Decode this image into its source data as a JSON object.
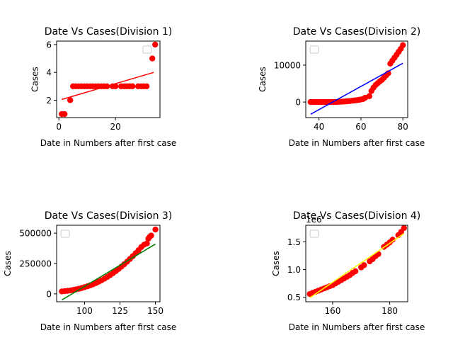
{
  "chart_data": [
    {
      "type": "scatter",
      "title": "Date Vs Cases(Division 1)",
      "xlabel": "Date in Numbers after first case",
      "ylabel": "Cases",
      "xlim": [
        -0.8,
        35.7
      ],
      "ylim": [
        0.75,
        6.25
      ],
      "xticks": [
        0,
        20
      ],
      "xtick_labels": [
        "0",
        "20"
      ],
      "yticks": [
        2,
        4,
        6
      ],
      "ytick_labels": [
        "2",
        "4",
        "6"
      ],
      "legend": "top-right",
      "point_color": "#ff0000",
      "fit_color": "#ff0000",
      "points": {
        "x": [
          1,
          2,
          4,
          5,
          6,
          7,
          8,
          9,
          10,
          11,
          12,
          13,
          14,
          15,
          16,
          17,
          19,
          20,
          22,
          23,
          24,
          25,
          26,
          28,
          29,
          30,
          31,
          33,
          34
        ],
        "y": [
          1,
          1,
          2,
          3,
          3,
          3,
          3,
          3,
          3,
          3,
          3,
          3,
          3,
          3,
          3,
          3,
          3,
          3,
          3,
          3,
          3,
          3,
          3,
          3,
          3,
          3,
          3,
          5,
          6
        ]
      },
      "fit": {
        "x": [
          1,
          33.5
        ],
        "y": [
          2.05,
          4.0
        ]
      }
    },
    {
      "type": "scatter",
      "title": "Date Vs Cases(Division 2)",
      "xlabel": "Date in Numbers after first case",
      "ylabel": "Cases",
      "xlim": [
        33.7,
        82.3
      ],
      "ylim": [
        -4200,
        16500
      ],
      "xticks": [
        40,
        60,
        80
      ],
      "xtick_labels": [
        "40",
        "60",
        "80"
      ],
      "yticks": [
        0,
        10000
      ],
      "ytick_labels": [
        "0",
        "10000"
      ],
      "legend": "top-left",
      "point_color": "#ff0000",
      "fit_color": "#0000ff",
      "points": {
        "x": [
          36,
          37,
          38,
          39,
          40,
          41,
          42,
          43,
          44,
          45,
          46,
          47,
          48,
          49,
          50,
          51,
          52,
          53,
          54,
          55,
          56,
          57,
          58,
          59,
          60,
          61,
          62,
          64,
          65,
          66,
          67,
          68,
          69,
          70,
          71,
          72,
          73,
          74,
          75,
          76,
          77,
          78,
          79,
          80
        ],
        "y": [
          0,
          0,
          0,
          0,
          0,
          0,
          0,
          0,
          0,
          0,
          0,
          0,
          0,
          50,
          80,
          110,
          150,
          190,
          240,
          300,
          360,
          430,
          510,
          600,
          700,
          820,
          1150,
          1600,
          3000,
          3900,
          4600,
          5100,
          5600,
          6000,
          6600,
          7200,
          7800,
          10400,
          11200,
          12000,
          12800,
          13600,
          14400,
          15400
        ]
      },
      "fit": {
        "x": [
          36,
          80
        ],
        "y": [
          -3300,
          10500
        ]
      }
    },
    {
      "type": "scatter",
      "title": "Date Vs Cases(Division 3)",
      "xlabel": "Date in Numbers after first case",
      "ylabel": "Cases",
      "xlim": [
        80.3,
        153.2
      ],
      "ylim": [
        -65000,
        565000
      ],
      "xticks": [
        100,
        125,
        150
      ],
      "xtick_labels": [
        "100",
        "125",
        "150"
      ],
      "yticks": [
        0,
        250000,
        500000
      ],
      "ytick_labels": [
        "0",
        "250000",
        "500000"
      ],
      "legend": "top-left",
      "point_color": "#ff0000",
      "fit_color": "#008000",
      "points": {
        "x": [
          84,
          86,
          88,
          90,
          92,
          94,
          96,
          98,
          100,
          102,
          104,
          106,
          108,
          110,
          112,
          114,
          116,
          118,
          120,
          122,
          124,
          126,
          128,
          130,
          132,
          134,
          136,
          138,
          140,
          142,
          144,
          145,
          146,
          147,
          150
        ],
        "y": [
          20000,
          22000,
          25000,
          28000,
          32000,
          37000,
          42000,
          48000,
          55000,
          62000,
          70000,
          79000,
          89000,
          100000,
          112000,
          125000,
          139000,
          154000,
          170000,
          187000,
          205000,
          224000,
          244000,
          265000,
          287000,
          310000,
          334000,
          359000,
          385000,
          405000,
          415000,
          455000,
          470000,
          480000,
          530000
        ]
      },
      "fit": {
        "x": [
          84,
          150
        ],
        "y": [
          -50000,
          410000
        ]
      }
    },
    {
      "type": "scatter",
      "title": "Date Vs Cases(Division 4)",
      "xlabel": "Date in Numbers after first case",
      "ylabel": "Cases",
      "y_offset_label": "1e6",
      "xlim": [
        150.6,
        186.3
      ],
      "ylim": [
        0.42,
        1.8
      ],
      "xticks": [
        160,
        180
      ],
      "xtick_labels": [
        "160",
        "180"
      ],
      "yticks": [
        0.5,
        1.0,
        1.5
      ],
      "ytick_labels": [
        "0.5",
        "1.0",
        "1.5"
      ],
      "legend": "top-left",
      "point_color": "#ff0000",
      "fit_color": "#ffff00",
      "points": {
        "x": [
          152,
          153,
          154,
          155,
          156,
          157,
          158,
          159,
          160,
          161,
          162,
          163,
          164,
          165,
          166,
          167,
          168,
          170,
          171,
          173,
          174,
          175,
          176,
          178,
          179,
          180,
          181,
          183,
          184,
          185
        ],
        "y": [
          0.56,
          0.58,
          0.6,
          0.62,
          0.64,
          0.66,
          0.68,
          0.7,
          0.72,
          0.75,
          0.78,
          0.81,
          0.84,
          0.87,
          0.9,
          0.94,
          0.97,
          1.04,
          1.08,
          1.15,
          1.19,
          1.24,
          1.28,
          1.41,
          1.45,
          1.49,
          1.54,
          1.62,
          1.68,
          1.75
        ]
      },
      "fit": {
        "x": [
          152,
          185
        ],
        "y": [
          0.49,
          1.65
        ]
      }
    }
  ]
}
